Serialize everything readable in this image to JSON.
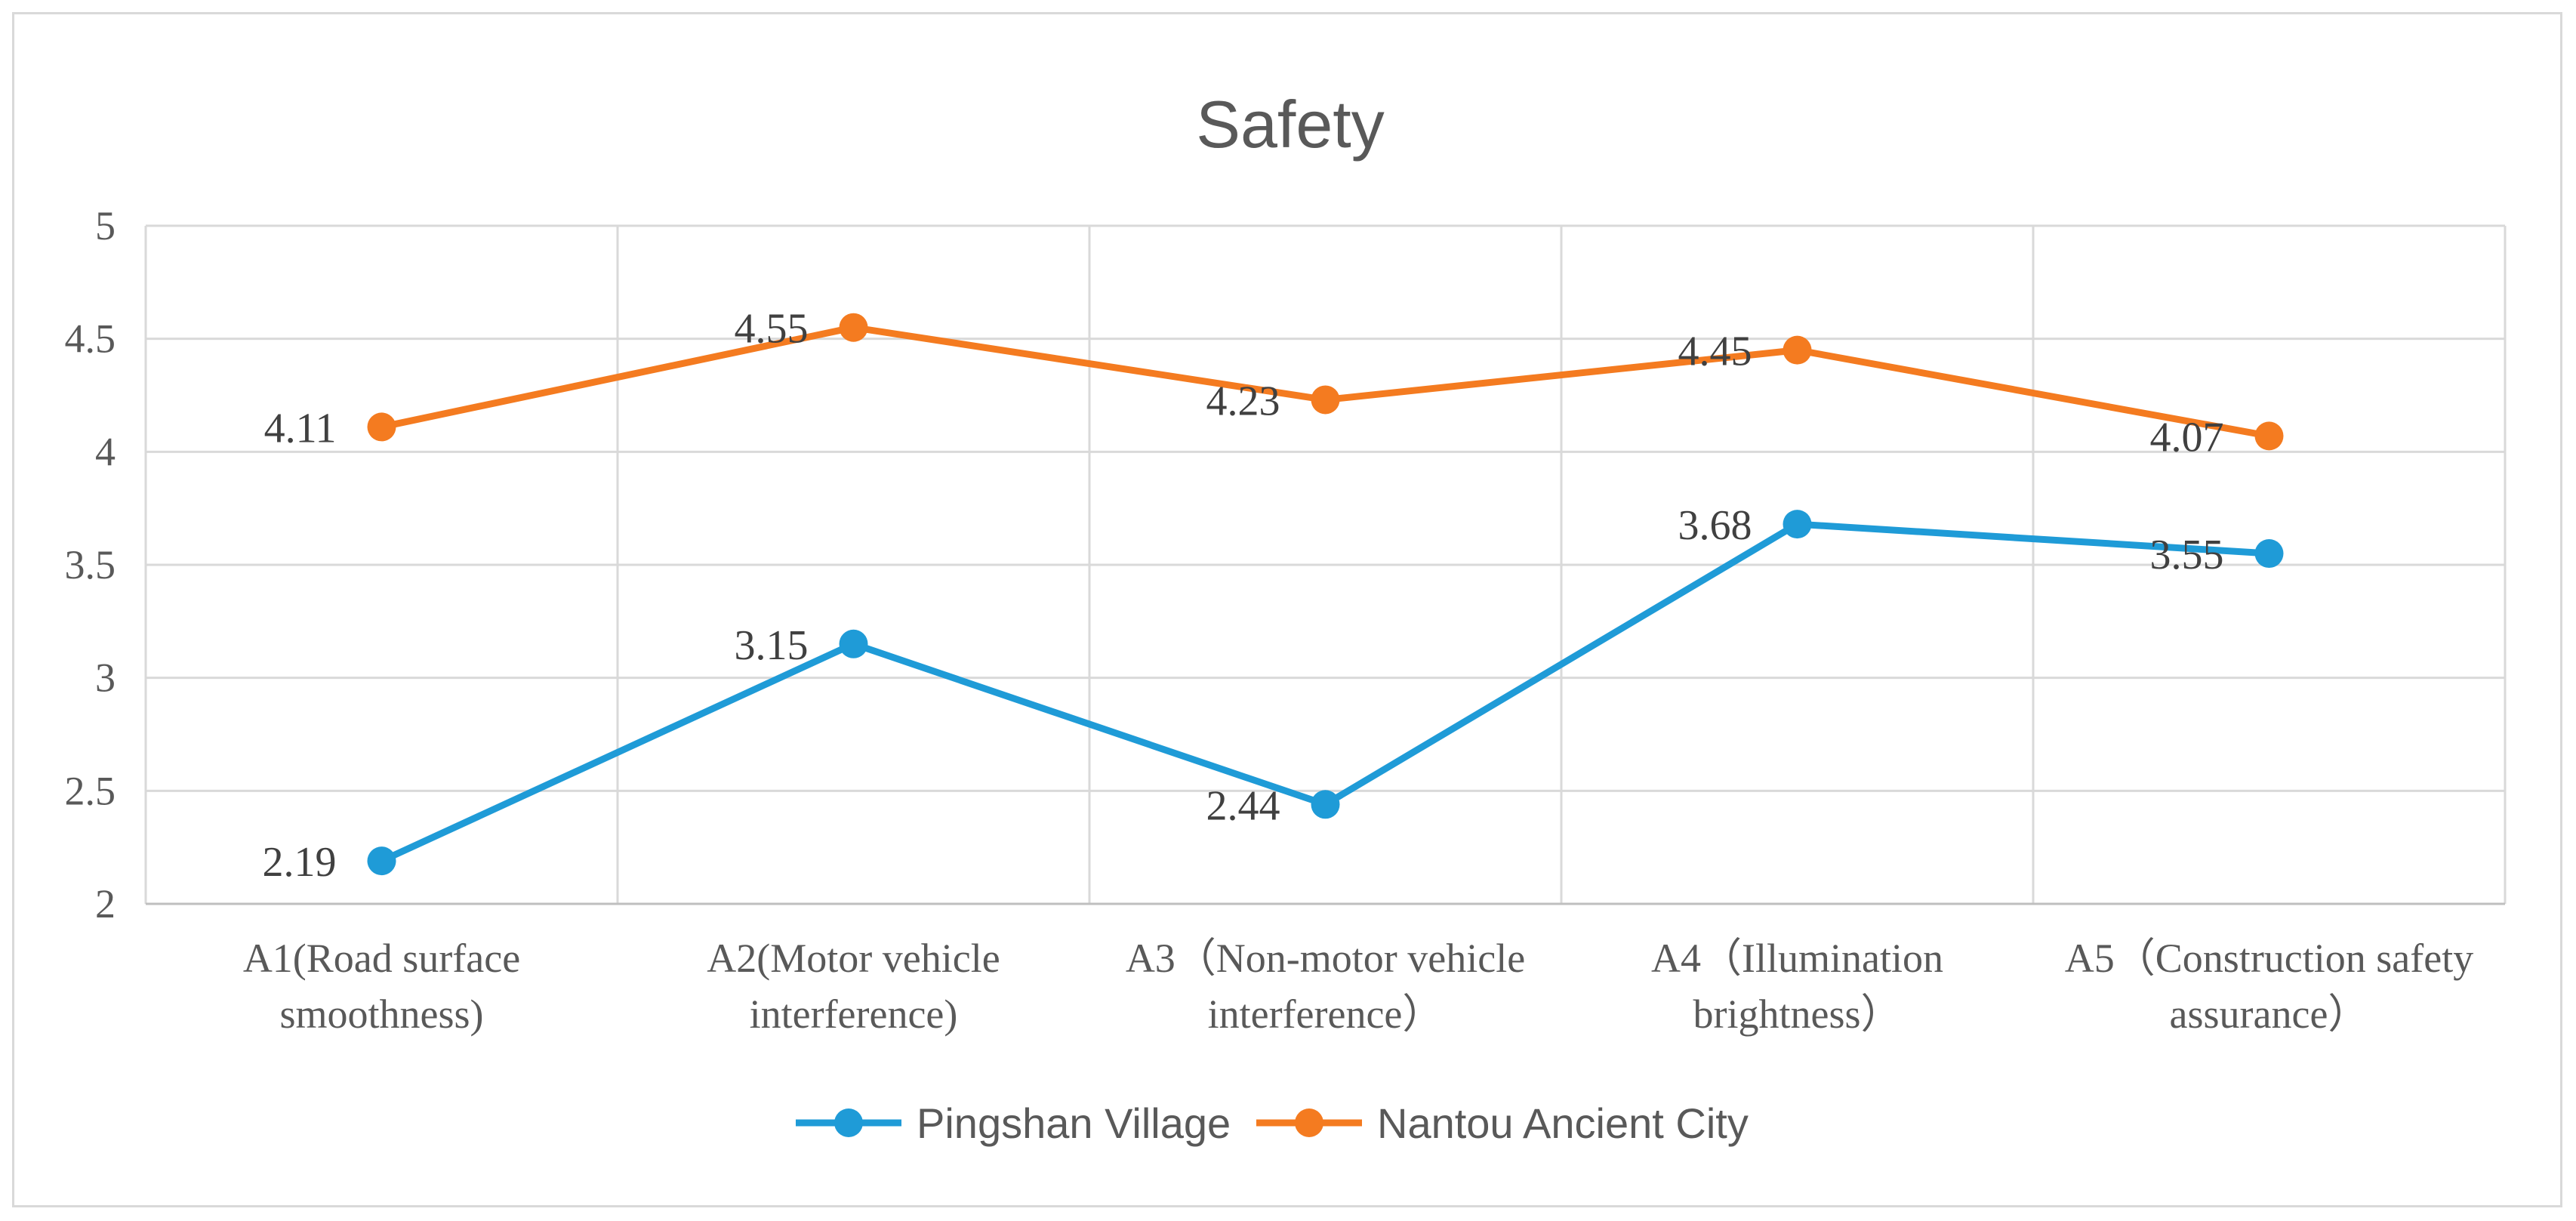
{
  "chart_data": {
    "type": "line",
    "title": "Safety",
    "xlabel": "",
    "ylabel": "",
    "ylim": [
      2,
      5
    ],
    "yticks": [
      "2",
      "2.5",
      "3",
      "3.5",
      "4",
      "4.5",
      "5"
    ],
    "categories": [
      [
        "A1(Road surface",
        "smoothness)"
      ],
      [
        "A2(Motor vehicle",
        "interference)"
      ],
      [
        "A3（Non-motor vehicle",
        "interference）"
      ],
      [
        "A4（Illumination",
        "brightness）"
      ],
      [
        "A5（Construction safety",
        "assurance）"
      ]
    ],
    "series": [
      {
        "name": "Pingshan Village",
        "color": "#1f9bd7",
        "values": [
          2.19,
          3.15,
          2.44,
          3.68,
          3.55
        ],
        "labels": [
          "2.19",
          "3.15",
          "2.44",
          "3.68",
          "3.55"
        ]
      },
      {
        "name": "Nantou Ancient City",
        "color": "#f47b20",
        "values": [
          4.11,
          4.55,
          4.23,
          4.45,
          4.07
        ],
        "labels": [
          "4.11",
          "4.55",
          "4.23",
          "4.45",
          "4.07"
        ]
      }
    ],
    "grid": true,
    "legend": "bottom"
  }
}
